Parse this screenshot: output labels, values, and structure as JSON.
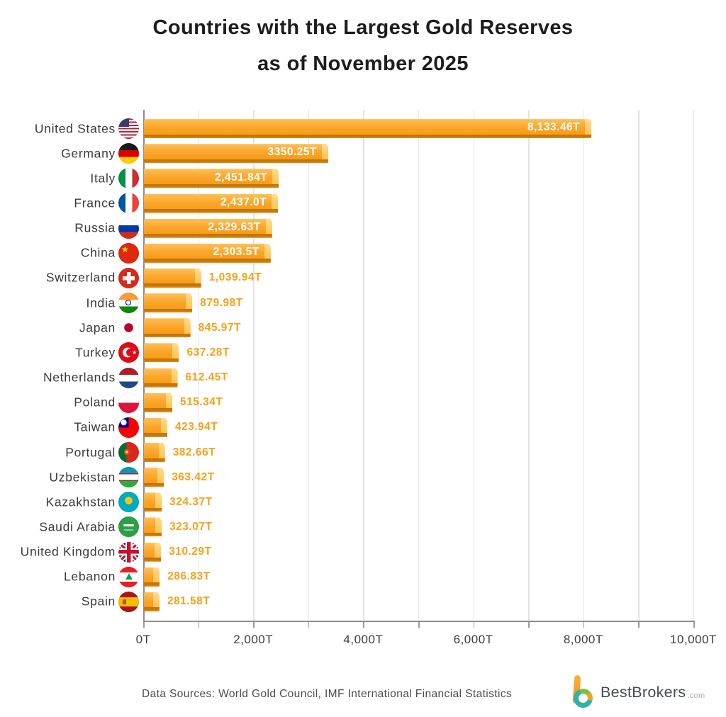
{
  "title": {
    "line1": "Countries with the Largest Gold Reserves",
    "line2": "as of November 2025"
  },
  "chart_data": {
    "type": "bar",
    "orientation": "horizontal",
    "title": "Countries with the Largest Gold Reserves as of November 2025",
    "value_suffix": "T",
    "categories": [
      "United States",
      "Germany",
      "Italy",
      "France",
      "Russia",
      "China",
      "Switzerland",
      "India",
      "Japan",
      "Turkey",
      "Netherlands",
      "Poland",
      "Taiwan",
      "Portugal",
      "Uzbekistan",
      "Kazakhstan",
      "Saudi Arabia",
      "United Kingdom",
      "Lebanon",
      "Spain"
    ],
    "values": [
      8133.46,
      3350.25,
      2451.84,
      2437.0,
      2329.63,
      2303.5,
      1039.94,
      879.98,
      845.97,
      637.28,
      612.45,
      515.34,
      423.94,
      382.66,
      363.42,
      324.37,
      323.07,
      310.29,
      286.83,
      281.58
    ],
    "value_labels": [
      "8,133.46T",
      "3350.25T",
      "2,451.84T",
      "2,437.0T",
      "2,329.63T",
      "2,303.5T",
      "1,039.94T",
      "879.98T",
      "845.97T",
      "637.28T",
      "612.45T",
      "515.34T",
      "423.94T",
      "382.66T",
      "363.42T",
      "324.37T",
      "323.07T",
      "310.29T",
      "286.83T",
      "281.58T"
    ],
    "flags": [
      "flag-united-states",
      "flag-germany",
      "flag-italy",
      "flag-france",
      "flag-russia",
      "flag-china",
      "flag-switzerland",
      "flag-india",
      "flag-japan",
      "flag-turkey",
      "flag-netherlands",
      "flag-poland",
      "flag-taiwan",
      "flag-portugal",
      "flag-uzbekistan",
      "flag-kazakhstan",
      "flag-saudi-arabia",
      "flag-united-kingdom",
      "flag-lebanon",
      "flag-spain"
    ],
    "xlim": [
      0,
      10000
    ],
    "gridline_step": 1000,
    "grid": true,
    "legend": false,
    "x_tick_values": [
      0,
      2000,
      4000,
      6000,
      8000,
      10000
    ],
    "x_tick_labels": [
      "0T",
      "2,000T",
      "4,000T",
      "6,000T",
      "8,000T",
      "10,000T"
    ],
    "colors": {
      "bar_face": "#F9A227",
      "bar_face_light": "#FFC055",
      "bar_edge_dark": "#C7780D",
      "bar_bevel_light": "#FFDC8C",
      "value_label_inside": "#FFFFFF",
      "value_label_outside": "#F7A11B",
      "axis_line": "#8D8D8D",
      "gridline": "#E4E4E4",
      "text": "#3A3A3A"
    }
  },
  "footer": {
    "source_text": "Data Sources: World Gold Council, IMF International Financial Statistics",
    "brand": "BestBrokers",
    "brand_suffix": ".com"
  }
}
